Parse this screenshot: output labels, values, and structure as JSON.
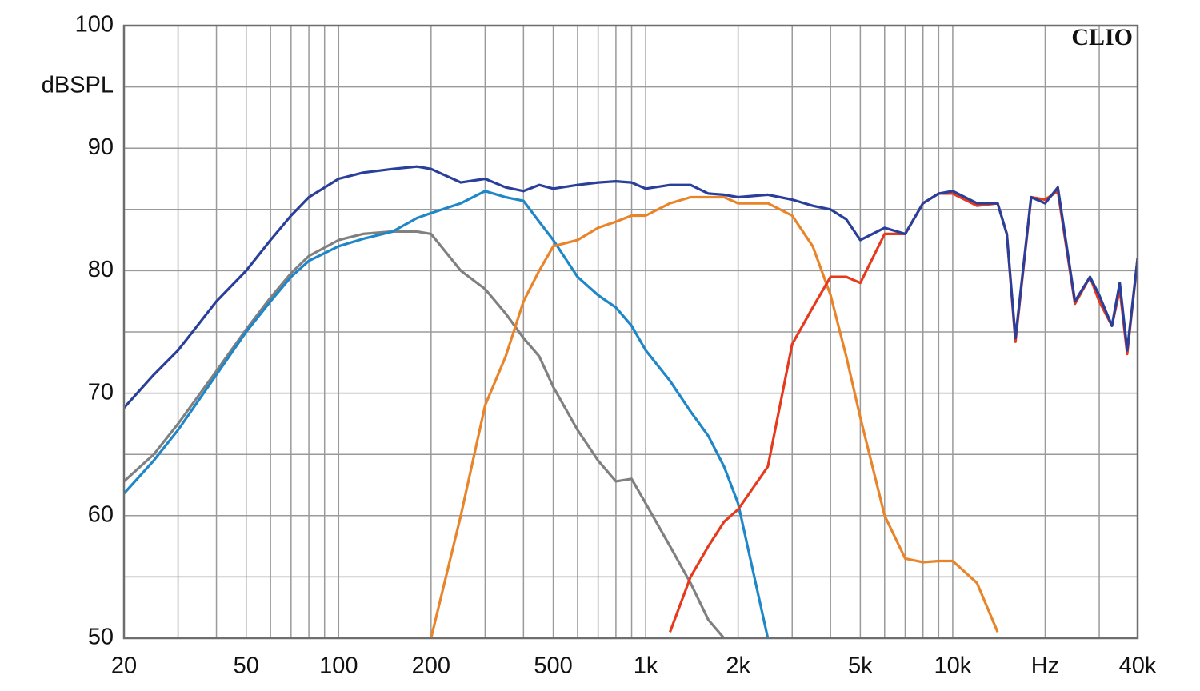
{
  "chart_data": {
    "type": "line",
    "ylabel": "dBSPL",
    "annotation": "CLIO",
    "log_x": true,
    "grid": true,
    "x": [
      20,
      25,
      30,
      40,
      50,
      60,
      70,
      80,
      100,
      120,
      150,
      180,
      200,
      250,
      300,
      350,
      400,
      450,
      500,
      600,
      700,
      800,
      900,
      1000,
      1200,
      1400,
      1600,
      1800,
      2000,
      2500,
      3000,
      3500,
      4000,
      4500,
      5000,
      6000,
      7000,
      8000,
      9000,
      10000,
      12000,
      14000,
      15000,
      16000,
      18000,
      20000,
      22000,
      25000,
      28000,
      30000,
      33000,
      35000,
      37000,
      40000
    ],
    "series": [
      {
        "color": "#808080",
        "values": [
          62.8,
          65,
          67.5,
          71.8,
          75.2,
          77.8,
          79.8,
          81.2,
          82.5,
          83,
          83.2,
          83.2,
          83,
          80,
          78.5,
          76.5,
          74.5,
          73,
          70.5,
          67,
          64.5,
          62.8,
          63,
          61,
          57.5,
          54.5,
          51.5,
          50,
          null,
          null,
          null,
          null,
          null,
          null,
          null,
          null,
          null,
          null,
          null,
          null,
          null,
          null,
          null,
          null,
          null,
          null,
          null,
          null,
          null,
          null,
          null,
          null,
          null,
          null
        ]
      },
      {
        "color": "#1f86c8",
        "values": [
          61.8,
          64.5,
          67,
          71.5,
          75,
          77.5,
          79.5,
          80.8,
          82,
          82.6,
          83.2,
          84.3,
          84.7,
          85.5,
          86.5,
          86,
          85.7,
          84,
          82.5,
          79.5,
          78,
          77,
          75.5,
          73.5,
          71,
          68.5,
          66.5,
          64,
          61,
          50,
          null,
          null,
          null,
          null,
          null,
          null,
          null,
          null,
          null,
          null,
          null,
          null,
          null,
          null,
          null,
          null,
          null,
          null,
          null,
          null,
          null,
          null,
          null,
          null
        ]
      },
      {
        "color": "#e8842a",
        "values": [
          null,
          null,
          null,
          null,
          null,
          null,
          null,
          null,
          null,
          null,
          null,
          null,
          50,
          60,
          69,
          73,
          77.5,
          80,
          82,
          82.5,
          83.5,
          84,
          84.5,
          84.5,
          85.5,
          86,
          86,
          86,
          85.5,
          85.5,
          84.5,
          82,
          78,
          73,
          68,
          60,
          56.5,
          56.2,
          56.3,
          56.3,
          54.5,
          50.5,
          null,
          null,
          null,
          null,
          null,
          null,
          null,
          null,
          null,
          null,
          null,
          null
        ]
      },
      {
        "color": "#e63a1f",
        "values": [
          null,
          null,
          null,
          null,
          null,
          null,
          null,
          null,
          null,
          null,
          null,
          null,
          null,
          null,
          null,
          null,
          null,
          null,
          null,
          null,
          null,
          null,
          null,
          null,
          50.5,
          55,
          57.5,
          59.5,
          60.5,
          64,
          74,
          77,
          79.5,
          79.5,
          79,
          83,
          83,
          85.5,
          86.3,
          86.3,
          85.3,
          85.5,
          83,
          74.2,
          86,
          85.8,
          86.5,
          77.3,
          79.5,
          77.5,
          75.5,
          78.5,
          73.2,
          81
        ]
      },
      {
        "color": "#2a3f99",
        "values": [
          68.8,
          71.5,
          73.5,
          77.5,
          80,
          82.5,
          84.5,
          86,
          87.5,
          88,
          88.3,
          88.5,
          88.3,
          87.2,
          87.5,
          86.8,
          86.5,
          87,
          86.7,
          87,
          87.2,
          87.3,
          87.2,
          86.7,
          87,
          87,
          86.3,
          86.2,
          86,
          86.2,
          85.8,
          85.3,
          85,
          84.2,
          82.5,
          83.5,
          83,
          85.5,
          86.3,
          86.5,
          85.5,
          85.5,
          83,
          74.5,
          86,
          85.5,
          86.8,
          77.5,
          79.5,
          78,
          75.5,
          79,
          73.5,
          81
        ]
      }
    ],
    "xlim": [
      20,
      40000
    ],
    "xticks": [
      20,
      50,
      100,
      200,
      500,
      {
        "value": 1000,
        "label": "1k"
      },
      {
        "value": 2000,
        "label": "2k"
      },
      {
        "value": 5000,
        "label": "5k"
      },
      {
        "value": 10000,
        "label": "10k"
      },
      {
        "value": 20000,
        "label": "Hz"
      },
      {
        "value": 40000,
        "label": "40k"
      }
    ],
    "xminor": [
      30,
      40,
      60,
      70,
      80,
      90,
      300,
      400,
      600,
      700,
      800,
      900,
      3000,
      4000,
      6000,
      7000,
      8000,
      9000,
      30000
    ],
    "ylim": [
      50,
      100
    ],
    "yticks": [
      50,
      60,
      70,
      80,
      90,
      100
    ],
    "yminor": [
      55,
      65,
      75,
      85,
      95
    ]
  }
}
